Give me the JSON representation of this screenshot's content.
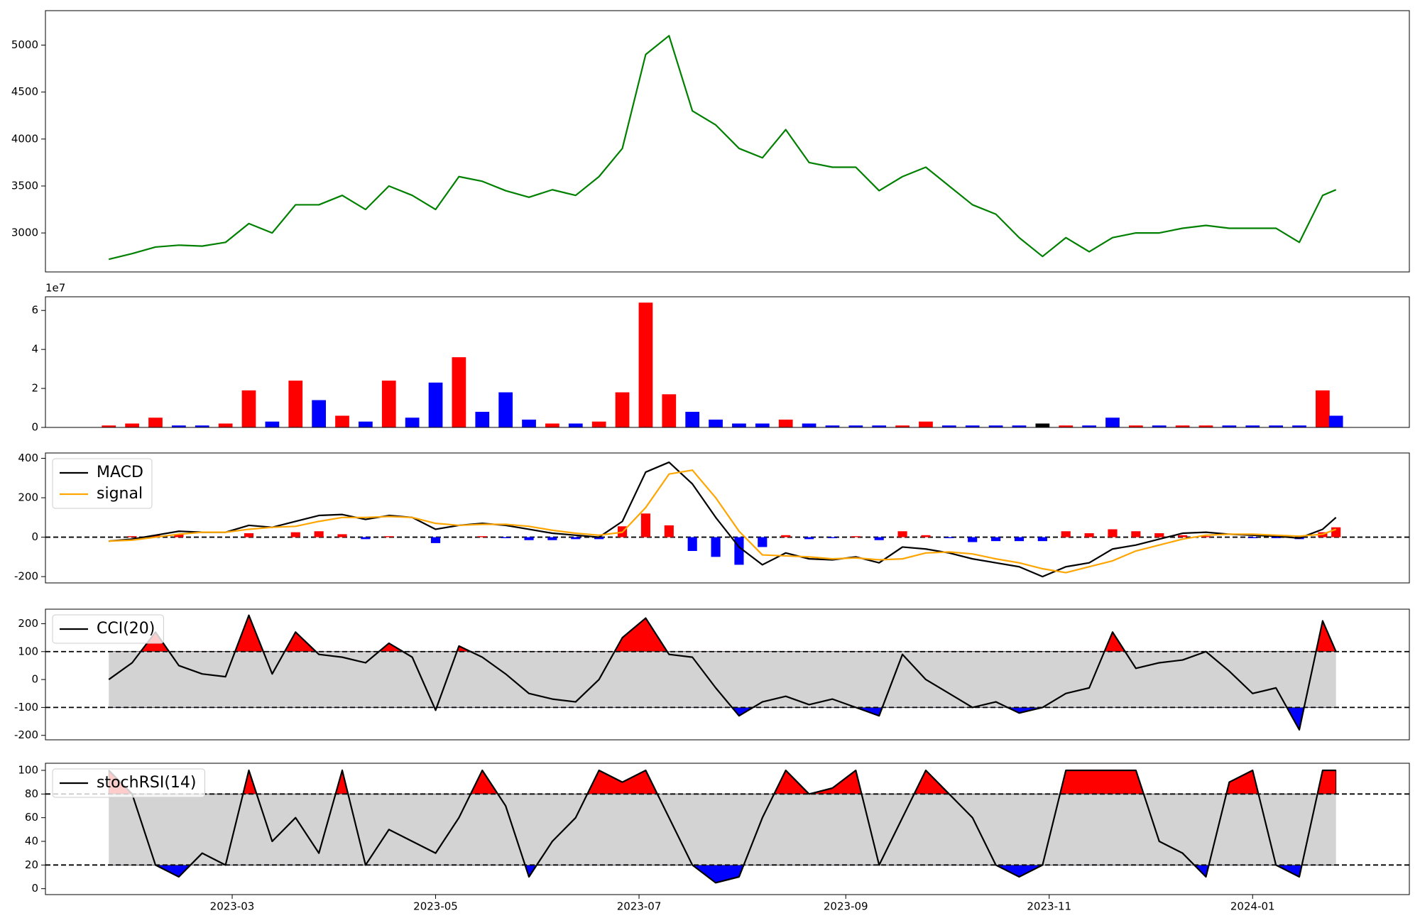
{
  "chart_data": [
    {
      "type": "line",
      "x": [
        "2023-01-23",
        "2023-01-30",
        "2023-02-06",
        "2023-02-13",
        "2023-02-20",
        "2023-02-27",
        "2023-03-06",
        "2023-03-13",
        "2023-03-20",
        "2023-03-27",
        "2023-04-03",
        "2023-04-10",
        "2023-04-17",
        "2023-04-24",
        "2023-05-01",
        "2023-05-08",
        "2023-05-15",
        "2023-05-22",
        "2023-05-29",
        "2023-06-05",
        "2023-06-12",
        "2023-06-19",
        "2023-06-26",
        "2023-07-03",
        "2023-07-10",
        "2023-07-17",
        "2023-07-24",
        "2023-07-31",
        "2023-08-07",
        "2023-08-14",
        "2023-08-21",
        "2023-08-28",
        "2023-09-04",
        "2023-09-11",
        "2023-09-18",
        "2023-09-25",
        "2023-10-02",
        "2023-10-09",
        "2023-10-16",
        "2023-10-23",
        "2023-10-30",
        "2023-11-06",
        "2023-11-13",
        "2023-11-20",
        "2023-11-27",
        "2023-12-04",
        "2023-12-11",
        "2023-12-18",
        "2023-12-25",
        "2024-01-01",
        "2024-01-08",
        "2024-01-15",
        "2024-01-22",
        "2024-01-26"
      ],
      "xlim": [
        "2023-01-04",
        "2024-02-17"
      ],
      "ylim": [
        2585,
        5367
      ],
      "yticks": [
        3000,
        3500,
        4000,
        4500,
        5000
      ],
      "series": [
        {
          "color": "#008000",
          "values": [
            2720,
            2780,
            2850,
            2870,
            2860,
            2900,
            3100,
            3000,
            3300,
            3300,
            3400,
            3250,
            3500,
            3400,
            3250,
            3600,
            3550,
            3450,
            3380,
            3460,
            3400,
            3600,
            3900,
            4900,
            5100,
            4300,
            4150,
            3900,
            3800,
            4100,
            3750,
            3700,
            3700,
            3450,
            3600,
            3700,
            3500,
            3300,
            3200,
            2950,
            2750,
            2950,
            2800,
            2950,
            3000,
            3000,
            3050,
            3080,
            3050,
            3050,
            3050,
            2900,
            3400,
            3460
          ]
        }
      ]
    },
    {
      "type": "bar",
      "offset_label": "1e7",
      "ylim": [
        0,
        6.7
      ],
      "yticks": [
        0,
        2,
        4,
        6
      ],
      "values": [
        0.1,
        0.2,
        0.5,
        0.1,
        0.1,
        0.2,
        1.9,
        0.3,
        2.4,
        1.4,
        0.6,
        0.3,
        2.4,
        0.5,
        2.3,
        3.6,
        0.8,
        1.8,
        0.4,
        0.2,
        0.2,
        0.3,
        1.8,
        6.4,
        1.7,
        0.8,
        0.4,
        0.2,
        0.2,
        0.4,
        0.2,
        0.1,
        0.1,
        0.1,
        0.1,
        0.3,
        0.1,
        0.1,
        0.1,
        0.1,
        0.2,
        0.1,
        0.1,
        0.5,
        0.1,
        0.1,
        0.1,
        0.1,
        0.1,
        0.1,
        0.1,
        0.1,
        1.9,
        0.6
      ],
      "colors": [
        "red",
        "red",
        "red",
        "blue",
        "blue",
        "red",
        "red",
        "blue",
        "red",
        "blue",
        "red",
        "blue",
        "red",
        "blue",
        "blue",
        "red",
        "blue",
        "blue",
        "blue",
        "red",
        "blue",
        "red",
        "red",
        "red",
        "red",
        "blue",
        "blue",
        "blue",
        "blue",
        "red",
        "blue",
        "blue",
        "blue",
        "blue",
        "red",
        "red",
        "blue",
        "blue",
        "blue",
        "blue",
        "black",
        "red",
        "blue",
        "blue",
        "red",
        "blue",
        "red",
        "red",
        "blue",
        "blue",
        "blue",
        "blue",
        "red",
        "blue"
      ]
    },
    {
      "type": "line",
      "reference_lines": [
        0
      ],
      "legend": "upper left",
      "ylim": [
        -232,
        427
      ],
      "yticks": [
        -200,
        0,
        200,
        400
      ],
      "series": [
        {
          "name": "MACD",
          "color": "#000000",
          "values": [
            -20,
            -10,
            10,
            30,
            25,
            25,
            60,
            50,
            80,
            110,
            115,
            90,
            110,
            100,
            40,
            60,
            70,
            60,
            40,
            20,
            10,
            0,
            80,
            330,
            380,
            270,
            100,
            -50,
            -140,
            -80,
            -110,
            -115,
            -100,
            -130,
            -50,
            -60,
            -80,
            -110,
            -130,
            -150,
            -200,
            -150,
            -130,
            -60,
            -40,
            -10,
            20,
            25,
            15,
            10,
            5,
            -5,
            40,
            100
          ]
        },
        {
          "name": "signal",
          "color": "#ffa500",
          "values": [
            -20,
            -15,
            0,
            15,
            25,
            25,
            40,
            50,
            55,
            80,
            100,
            100,
            105,
            100,
            70,
            60,
            65,
            65,
            55,
            35,
            20,
            10,
            25,
            150,
            320,
            340,
            200,
            30,
            -90,
            -95,
            -100,
            -110,
            -105,
            -115,
            -110,
            -80,
            -75,
            -85,
            -110,
            -130,
            -160,
            -180,
            -150,
            -120,
            -70,
            -40,
            -10,
            10,
            15,
            15,
            10,
            5,
            15,
            40
          ]
        }
      ],
      "histogram": {
        "positive_color": "red",
        "negative_color": "blue",
        "values": [
          0,
          5,
          10,
          15,
          0,
          0,
          20,
          0,
          25,
          30,
          15,
          -10,
          5,
          0,
          -30,
          0,
          5,
          -5,
          -15,
          -15,
          -10,
          -10,
          55,
          120,
          60,
          -70,
          -100,
          -140,
          -50,
          10,
          -10,
          -5,
          5,
          -15,
          30,
          10,
          -5,
          -25,
          -20,
          -20,
          -20,
          30,
          20,
          40,
          30,
          20,
          10,
          5,
          0,
          -5,
          -5,
          -10,
          25,
          50
        ]
      }
    },
    {
      "type": "line",
      "legend": "upper left",
      "ylim": [
        -216,
        252
      ],
      "yticks": [
        -200,
        -100,
        0,
        100,
        200
      ],
      "bands": {
        "upper": 100,
        "lower": -100,
        "upper_color": "red",
        "lower_color": "blue",
        "band_color": "#d3d3d3"
      },
      "series": [
        {
          "name": "CCI(20)",
          "color": "#000000",
          "values": [
            0,
            60,
            170,
            50,
            20,
            10,
            230,
            20,
            170,
            90,
            80,
            60,
            130,
            80,
            -110,
            120,
            80,
            20,
            -50,
            -70,
            -80,
            0,
            150,
            220,
            90,
            80,
            -30,
            -130,
            -80,
            -60,
            -90,
            -70,
            -100,
            -130,
            90,
            0,
            -50,
            -100,
            -80,
            -120,
            -100,
            -50,
            -30,
            170,
            40,
            60,
            70,
            100,
            30,
            -50,
            -30,
            -180,
            210,
            100
          ]
        }
      ]
    },
    {
      "type": "line",
      "legend": "upper left",
      "ylim": [
        -5,
        106
      ],
      "yticks": [
        0,
        20,
        40,
        60,
        80,
        100
      ],
      "bands": {
        "upper": 80,
        "lower": 20,
        "upper_color": "red",
        "lower_color": "blue",
        "band_color": "#d3d3d3"
      },
      "xticks": [
        {
          "value": "2023-03-01",
          "label": "2023-03"
        },
        {
          "value": "2023-05-01",
          "label": "2023-05"
        },
        {
          "value": "2023-07-01",
          "label": "2023-07"
        },
        {
          "value": "2023-09-01",
          "label": "2023-09"
        },
        {
          "value": "2023-11-01",
          "label": "2023-11"
        },
        {
          "value": "2024-01-01",
          "label": "2024-01"
        }
      ],
      "series": [
        {
          "name": "stochRSI(14)",
          "color": "#000000",
          "values": [
            100,
            80,
            20,
            10,
            30,
            20,
            100,
            40,
            60,
            30,
            100,
            20,
            50,
            40,
            30,
            60,
            100,
            70,
            10,
            40,
            60,
            100,
            90,
            100,
            60,
            20,
            5,
            10,
            60,
            100,
            80,
            85,
            100,
            20,
            60,
            100,
            80,
            60,
            20,
            10,
            20,
            100,
            100,
            100,
            100,
            40,
            30,
            10,
            90,
            100,
            20,
            10,
            100,
            100
          ]
        }
      ]
    }
  ]
}
